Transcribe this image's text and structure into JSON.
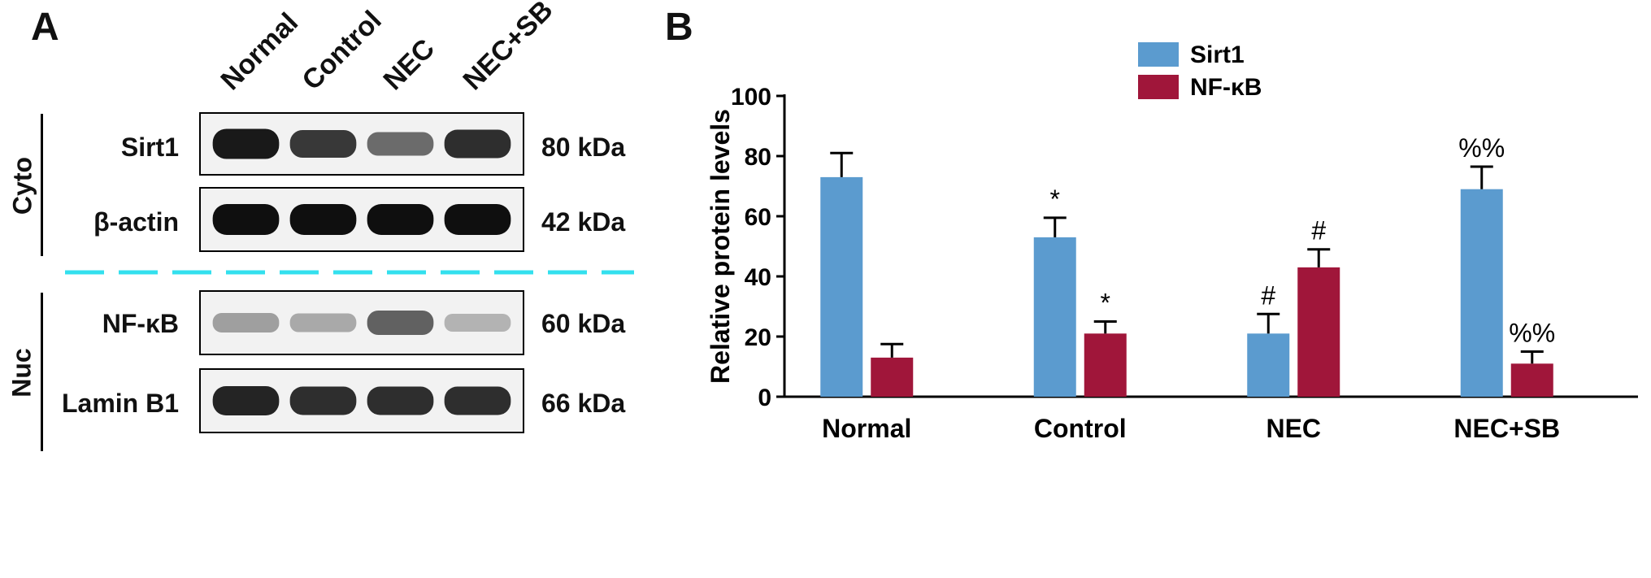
{
  "panel_a": {
    "letter": "A",
    "lanes": [
      "Normal",
      "Control",
      "NEC",
      "NEC+SB"
    ],
    "groups": [
      {
        "name": "Cyto",
        "bands": [
          {
            "label": "Sirt1",
            "kda": "80 kDa",
            "intensities": [
              0.95,
              0.8,
              0.55,
              0.85
            ]
          },
          {
            "label": "β-actin",
            "kda": "42 kDa",
            "intensities": [
              1.0,
              1.0,
              1.0,
              1.0
            ]
          }
        ]
      },
      {
        "name": "Nuc",
        "bands": [
          {
            "label": "NF-κB",
            "kda": "60 kDa",
            "intensities": [
              0.3,
              0.25,
              0.6,
              0.2
            ]
          },
          {
            "label": "Lamin B1",
            "kda": "66 kDa",
            "intensities": [
              0.9,
              0.85,
              0.85,
              0.85
            ]
          }
        ]
      }
    ],
    "divider_color": "#33e0ee"
  },
  "chart_data": {
    "panel_letter": "B",
    "type": "bar",
    "categories": [
      "Normal",
      "Control",
      "NEC",
      "NEC+SB"
    ],
    "series": [
      {
        "name": "Sirt1",
        "color": "#5b9bcf",
        "values": [
          73,
          53,
          21,
          69
        ],
        "errors": [
          8,
          6.5,
          6.5,
          7.5
        ],
        "annotations": [
          "",
          "*",
          "#",
          "%%"
        ]
      },
      {
        "name": "NF-κB",
        "color": "#a0163a",
        "values": [
          13,
          21,
          43,
          11
        ],
        "errors": [
          4.5,
          4,
          6,
          4
        ],
        "annotations": [
          "",
          "*",
          "#",
          "%%"
        ]
      }
    ],
    "ylabel": "Relative protein levels",
    "ylim": [
      0,
      100
    ],
    "yticks": [
      "0",
      "20",
      "40",
      "60",
      "80",
      "100"
    ],
    "legend_position": "top-right"
  }
}
